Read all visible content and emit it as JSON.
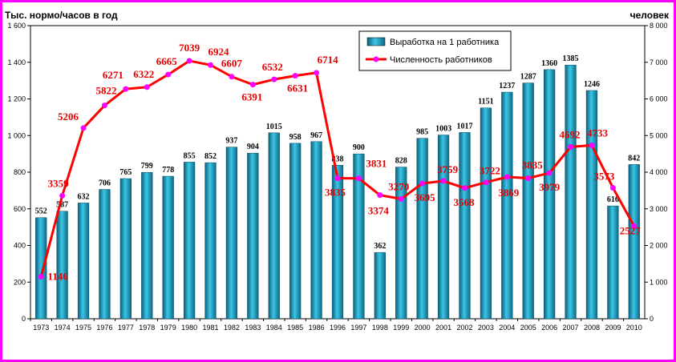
{
  "chart_data": {
    "type": "bar",
    "ylabel": "Тыс. нормо/часов в год",
    "y2label": "человек",
    "ylim": [
      0,
      1600
    ],
    "y2lim": [
      0,
      8000
    ],
    "yticks": [
      "0",
      "200",
      "400",
      "600",
      "800",
      "1 000",
      "1 200",
      "1 400",
      "1 600"
    ],
    "y2ticks": [
      "0",
      "1 000",
      "2 000",
      "3 000",
      "4 000",
      "5 000",
      "6 000",
      "7 000",
      "8 000"
    ],
    "legend_position": "top-center",
    "categories": [
      "1973",
      "1974",
      "1975",
      "1976",
      "1977",
      "1978",
      "1979",
      "1980",
      "1981",
      "1982",
      "1983",
      "1984",
      "1985",
      "1986",
      "1996",
      "1997",
      "1998",
      "1999",
      "2000",
      "2001",
      "2002",
      "2003",
      "2004",
      "2005",
      "2006",
      "2007",
      "2008",
      "2009",
      "2010"
    ],
    "series": [
      {
        "name": "Выработка на 1 работника",
        "type": "bar",
        "axis": "left",
        "color": "#1a8fb0",
        "values": [
          552,
          587,
          632,
          706,
          765,
          799,
          778,
          855,
          852,
          937,
          904,
          1015,
          958,
          967,
          838,
          900,
          362,
          828,
          985,
          1003,
          1017,
          1151,
          1237,
          1287,
          1360,
          1385,
          1246,
          616,
          842
        ]
      },
      {
        "name": "Численность работников",
        "type": "line",
        "axis": "right",
        "color": "#ff0000",
        "marker_color": "#ff00ff",
        "values": [
          1146,
          3359,
          5206,
          5822,
          6271,
          6322,
          6665,
          7039,
          6924,
          6607,
          6391,
          6532,
          6631,
          6714,
          3835,
          3831,
          3374,
          3270,
          3695,
          3759,
          3568,
          3722,
          3869,
          3835,
          3979,
          4692,
          4733,
          3573,
          2527
        ]
      }
    ]
  }
}
